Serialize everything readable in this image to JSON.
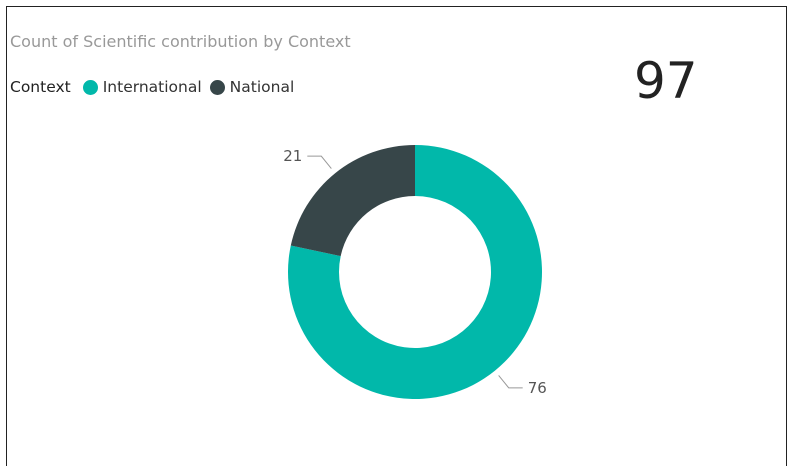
{
  "chart_data": {
    "type": "pie",
    "title": "Count of Scientific contribution by Context",
    "legend_title": "Context",
    "legend_placement": "top-left",
    "donut": true,
    "categories": [
      "International",
      "National"
    ],
    "values": [
      76,
      21
    ],
    "colors": [
      "#01B8AA",
      "#374649"
    ]
  },
  "card": {
    "value": "97"
  }
}
